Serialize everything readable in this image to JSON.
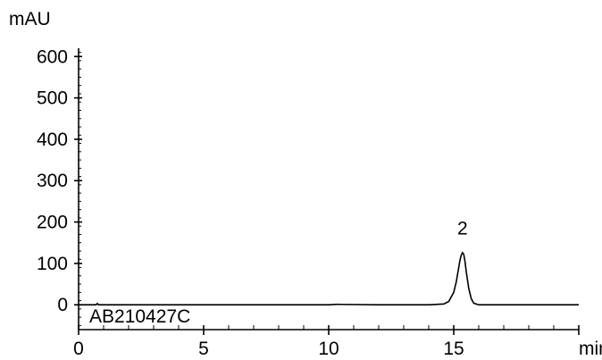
{
  "chart_data": {
    "type": "line",
    "y_unit_label": "mAU",
    "x_unit_label": "min",
    "xlim": [
      0,
      20
    ],
    "ylim": [
      -60,
      620
    ],
    "x_ticks": [
      {
        "value": 0,
        "label": "0"
      },
      {
        "value": 5,
        "label": "5"
      },
      {
        "value": 10,
        "label": "10"
      },
      {
        "value": 15,
        "label": "15"
      }
    ],
    "y_ticks": [
      {
        "value": 0,
        "label": "0"
      },
      {
        "value": 100,
        "label": "100"
      },
      {
        "value": 200,
        "label": "200"
      },
      {
        "value": 300,
        "label": "300"
      },
      {
        "value": 400,
        "label": "400"
      },
      {
        "value": 500,
        "label": "500"
      },
      {
        "value": 600,
        "label": "600"
      }
    ],
    "grid": false,
    "legend": "none",
    "trace_label": "AB210427C",
    "series": [
      {
        "x": [
          0.0,
          0.7,
          0.75,
          0.8,
          1.5,
          3.0,
          5.0,
          8.0,
          10.0,
          10.3,
          12.0,
          14.0,
          14.6,
          14.8,
          15.0,
          15.1,
          15.2,
          15.25,
          15.3,
          15.35,
          15.4,
          15.45,
          15.5,
          15.6,
          15.7,
          15.8,
          16.0,
          17.0,
          18.0,
          19.0,
          20.0
        ],
        "y": [
          0,
          0,
          3,
          0,
          0,
          0,
          0,
          0,
          0,
          1,
          0,
          0,
          2,
          8,
          30,
          55,
          90,
          108,
          120,
          126,
          122,
          105,
          80,
          40,
          15,
          4,
          0,
          0,
          0,
          0,
          0
        ]
      }
    ],
    "annotations": [
      {
        "text": "2",
        "x": 15.35,
        "y": 185
      }
    ]
  },
  "colors": {
    "line": "#000000",
    "axis": "#000000",
    "background": "#ffffff"
  }
}
